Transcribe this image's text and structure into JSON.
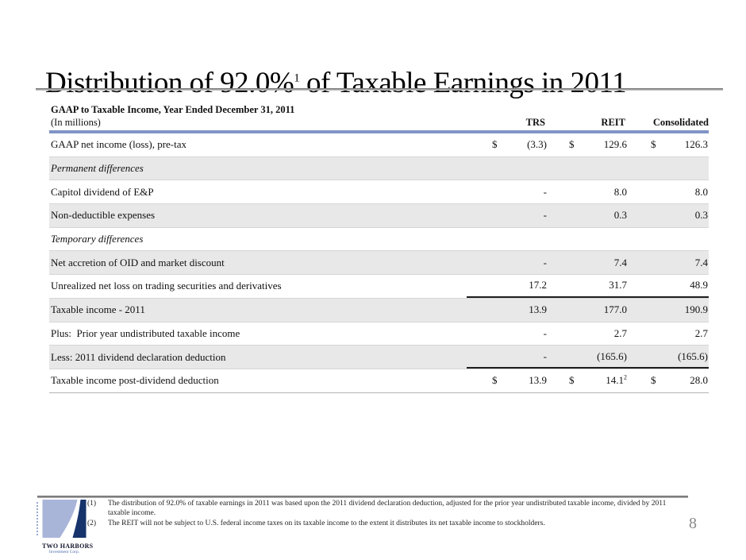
{
  "slide": {
    "title_prefix": "Distribution of 92.0%",
    "title_sup": "1",
    "title_suffix": " of Taxable Earnings in 2011",
    "page_number": "8"
  },
  "table": {
    "caption": "GAAP to Taxable Income, Year Ended December 31, 2011",
    "units_label": "(In millions)",
    "columns": [
      "TRS",
      "REIT",
      "Consolidated"
    ],
    "rows": [
      {
        "label": "GAAP net income (loss), pre-tax",
        "section": false,
        "rule_below": false,
        "cells": [
          {
            "d": "$",
            "v": "(3.3)"
          },
          {
            "d": "$",
            "v": "129.6"
          },
          {
            "d": "$",
            "v": "126.3"
          }
        ]
      },
      {
        "label": "Permanent differences",
        "section": true,
        "rule_below": false,
        "cells": []
      },
      {
        "label": "Capitol dividend of E&P",
        "section": false,
        "rule_below": false,
        "cells": [
          {
            "v": "-"
          },
          {
            "v": "8.0"
          },
          {
            "v": "8.0"
          }
        ]
      },
      {
        "label": "Non-deductible expenses",
        "section": false,
        "rule_below": false,
        "cells": [
          {
            "v": "-"
          },
          {
            "v": "0.3"
          },
          {
            "v": "0.3"
          }
        ]
      },
      {
        "label": "Temporary differences",
        "section": true,
        "rule_below": false,
        "cells": []
      },
      {
        "label": "Net accretion of OID and market discount",
        "section": false,
        "rule_below": false,
        "cells": [
          {
            "v": "-"
          },
          {
            "v": "7.4"
          },
          {
            "v": "7.4"
          }
        ]
      },
      {
        "label": "Unrealized net loss on trading securities and derivatives",
        "section": false,
        "rule_below": true,
        "cells": [
          {
            "v": "17.2"
          },
          {
            "v": "31.7"
          },
          {
            "v": "48.9"
          }
        ]
      },
      {
        "label": "Taxable income - 2011",
        "section": false,
        "rule_below": false,
        "cells": [
          {
            "v": "13.9"
          },
          {
            "v": "177.0"
          },
          {
            "v": "190.9"
          }
        ]
      },
      {
        "label": "Plus:  Prior year undistributed taxable income",
        "section": false,
        "rule_below": false,
        "cells": [
          {
            "v": "-"
          },
          {
            "v": "2.7"
          },
          {
            "v": "2.7"
          }
        ]
      },
      {
        "label": "Less: 2011 dividend declaration deduction",
        "section": false,
        "rule_below": true,
        "cells": [
          {
            "v": "-"
          },
          {
            "v": "(165.6)"
          },
          {
            "v": "(165.6)"
          }
        ]
      },
      {
        "label": "Taxable income post-dividend deduction",
        "section": false,
        "rule_below": false,
        "cells": [
          {
            "d": "$",
            "v": "13.9"
          },
          {
            "d": "$",
            "v": "14.1",
            "sup": "2"
          },
          {
            "d": "$",
            "v": "28.0"
          }
        ]
      }
    ]
  },
  "footnotes": [
    {
      "num": "(1)",
      "text": "The distribution of 92.0% of taxable earnings in 2011 was based upon the 2011 dividend declaration deduction, adjusted for the prior year undistributed taxable income, divided by 2011 taxable income."
    },
    {
      "num": "(2)",
      "text": "The REIT will not be subject to U.S. federal income taxes on its taxable income to the extent it distributes its net taxable income to stockholders."
    }
  ],
  "logo": {
    "name": "TWO HARBORS",
    "subtitle": "Investment Corp."
  },
  "colors": {
    "accent_blue": "#8094c8",
    "stripe": "#e8e8e8",
    "logo_light": "#a9b4d9",
    "logo_dark": "#17336b"
  }
}
